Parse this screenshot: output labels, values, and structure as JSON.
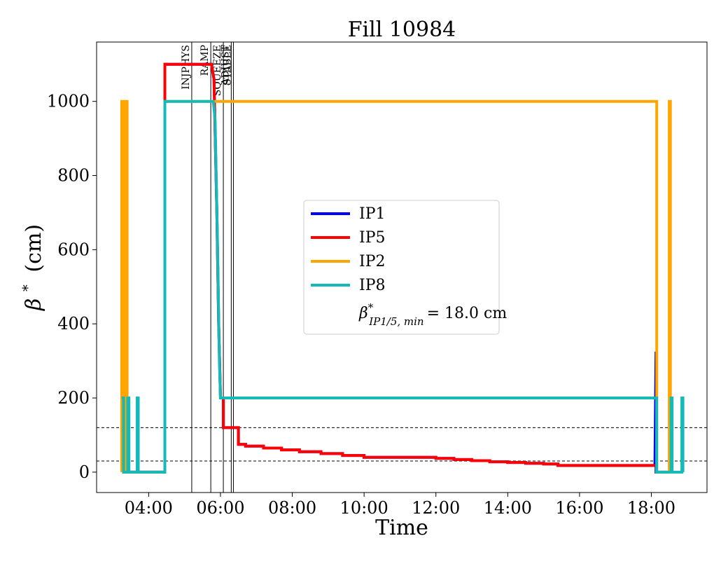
{
  "chart_data": {
    "type": "line",
    "title": "Fill 10984",
    "xlabel": "Time",
    "ylabel_symbol": "β",
    "ylabel_sup": "*",
    "ylabel_unit": "(cm)",
    "xlim": [
      2.55,
      19.55
    ],
    "ylim": [
      -55,
      1160
    ],
    "x_ticks": [
      {
        "value": 4,
        "label": "04:00"
      },
      {
        "value": 6,
        "label": "06:00"
      },
      {
        "value": 8,
        "label": "08:00"
      },
      {
        "value": 10,
        "label": "10:00"
      },
      {
        "value": 12,
        "label": "12:00"
      },
      {
        "value": 14,
        "label": "14:00"
      },
      {
        "value": 16,
        "label": "16:00"
      },
      {
        "value": 18,
        "label": "18:00"
      }
    ],
    "y_ticks": [
      {
        "value": 0,
        "label": "0"
      },
      {
        "value": 200,
        "label": "200"
      },
      {
        "value": 400,
        "label": "400"
      },
      {
        "value": 600,
        "label": "600"
      },
      {
        "value": 800,
        "label": "800"
      },
      {
        "value": 1000,
        "label": "1000"
      }
    ],
    "phases": [
      {
        "name": "INJPHYS",
        "x": 5.2
      },
      {
        "name": "RAMP",
        "x": 5.73
      },
      {
        "name": "SQUEEZE",
        "x": 6.08
      },
      {
        "name": "ADJUST",
        "x": 6.3
      },
      {
        "name": "STABLE",
        "x": 6.36
      }
    ],
    "hlines": [
      120,
      30
    ],
    "legend_position": "center",
    "legend_annotation": {
      "symbol": "β",
      "sup": "*",
      "sub": "IP1/5, min",
      "text": "= 18.0 cm"
    },
    "series": [
      {
        "name": "IP1",
        "color": "#0000ff",
        "x": [
          3.3,
          3.3,
          3.33,
          3.33,
          4.45,
          4.45,
          5.75,
          5.82,
          5.9,
          5.95,
          6.0,
          6.08,
          6.08,
          6.15,
          6.15,
          6.5,
          6.5,
          6.7,
          6.7,
          7.2,
          7.2,
          7.7,
          7.7,
          8.2,
          8.2,
          8.8,
          8.8,
          9.4,
          9.4,
          10.0,
          10.0,
          12.0,
          12.0,
          12.5,
          12.5,
          13.0,
          13.0,
          13.5,
          13.5,
          14.0,
          14.0,
          14.5,
          14.5,
          15.0,
          15.0,
          15.4,
          15.4,
          18.1,
          18.13,
          18.13,
          18.15,
          18.15,
          18.45,
          18.45
        ],
        "y": [
          200,
          0,
          0,
          0,
          0,
          1100,
          1100,
          1060,
          700,
          400,
          200,
          200,
          120,
          120,
          120,
          120,
          75,
          75,
          70,
          70,
          65,
          65,
          60,
          60,
          55,
          55,
          50,
          50,
          45,
          45,
          40,
          40,
          37,
          37,
          34,
          34,
          31,
          31,
          28,
          28,
          26,
          26,
          24,
          24,
          22,
          22,
          18,
          18,
          325,
          0,
          0,
          0,
          0,
          0
        ]
      },
      {
        "name": "IP5",
        "color": "#ff0000",
        "x": [
          3.3,
          3.3,
          3.33,
          3.33,
          4.45,
          4.45,
          5.75,
          5.82,
          5.9,
          5.95,
          6.0,
          6.08,
          6.08,
          6.15,
          6.15,
          6.5,
          6.5,
          6.7,
          6.7,
          7.2,
          7.2,
          7.7,
          7.7,
          8.2,
          8.2,
          8.8,
          8.8,
          9.4,
          9.4,
          10.0,
          10.0,
          12.0,
          12.0,
          12.5,
          12.5,
          13.0,
          13.0,
          13.5,
          13.5,
          14.0,
          14.0,
          14.5,
          14.5,
          15.0,
          15.0,
          15.4,
          15.4,
          18.1
        ],
        "y": [
          200,
          0,
          0,
          0,
          0,
          1100,
          1100,
          1060,
          700,
          400,
          200,
          200,
          120,
          120,
          120,
          120,
          75,
          75,
          70,
          70,
          65,
          65,
          60,
          60,
          55,
          55,
          50,
          50,
          45,
          45,
          40,
          40,
          37,
          37,
          34,
          34,
          31,
          31,
          28,
          28,
          26,
          26,
          24,
          24,
          22,
          22,
          18,
          18
        ]
      },
      {
        "name": "IP2",
        "color": "#ffa500",
        "x": [
          3.25,
          3.25,
          3.28,
          3.28,
          3.3,
          3.3,
          3.33,
          3.33,
          3.4,
          3.4,
          3.43,
          3.43,
          4.45,
          4.45,
          18.15,
          18.15,
          18.5,
          18.5,
          18.53,
          18.53
        ],
        "y": [
          0,
          1000,
          1000,
          200,
          200,
          0,
          0,
          1000,
          1000,
          0,
          0,
          0,
          0,
          1000,
          1000,
          0,
          0,
          1000,
          1000,
          0
        ]
      },
      {
        "name": "IP8",
        "color": "#14b9b9",
        "x": [
          3.25,
          3.25,
          3.3,
          3.3,
          3.42,
          3.42,
          3.45,
          3.45,
          3.68,
          3.68,
          3.71,
          3.71,
          4.45,
          4.45,
          5.8,
          5.85,
          5.92,
          5.97,
          6.0,
          18.1,
          18.15,
          18.15,
          18.55,
          18.55,
          18.58,
          18.58,
          18.85,
          18.85,
          18.88,
          18.88
        ],
        "y": [
          200,
          200,
          200,
          0,
          0,
          200,
          200,
          0,
          0,
          200,
          200,
          0,
          0,
          1000,
          1000,
          950,
          600,
          300,
          200,
          200,
          200,
          0,
          0,
          200,
          200,
          0,
          0,
          200,
          200,
          0
        ]
      }
    ]
  }
}
